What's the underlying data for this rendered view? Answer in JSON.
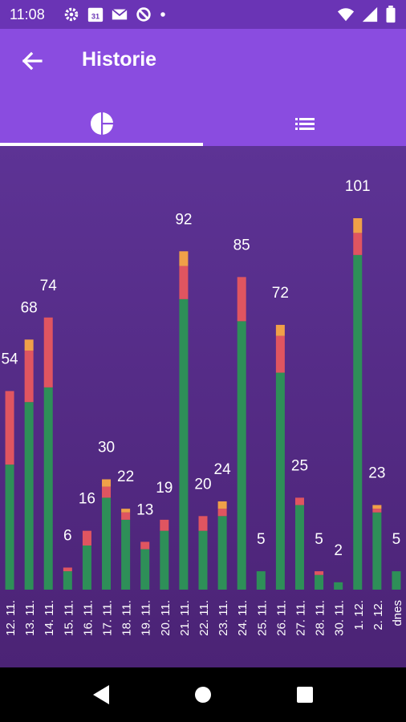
{
  "status_bar": {
    "time": "11:08",
    "calendar_day": "31",
    "icons_left": [
      "gear-icon",
      "calendar-icon",
      "gmail-icon",
      "sync-icon",
      "dot-icon"
    ],
    "icons_right": [
      "wifi-icon",
      "signal-icon",
      "battery-icon"
    ]
  },
  "app_bar": {
    "title": "Historie",
    "back_icon": "arrow-back-icon"
  },
  "tabs": [
    {
      "icon": "pie-chart-icon",
      "selected": true
    },
    {
      "icon": "list-icon",
      "selected": false
    }
  ],
  "colors": {
    "status_bar": "#6a34b5",
    "app_bar": "#8a4ce0",
    "background_top": "#5d3395",
    "background_bottom": "#4b2375",
    "green": "#2e8f58",
    "red": "#e05560",
    "orange": "#f0a048"
  },
  "chart_data": {
    "type": "bar",
    "stacked": true,
    "categories": [
      "12. 11.",
      "13. 11.",
      "14. 11.",
      "15. 11.",
      "16. 11.",
      "17. 11.",
      "18. 11.",
      "19. 11.",
      "20. 11.",
      "21. 11.",
      "22. 11.",
      "23. 11.",
      "24. 11.",
      "25. 11.",
      "26. 11.",
      "27. 11.",
      "28. 11.",
      "30. 11.",
      "1. 12.",
      "2. 12.",
      "dnes"
    ],
    "totals": [
      54,
      68,
      74,
      6,
      16,
      30,
      22,
      13,
      19,
      92,
      20,
      24,
      85,
      5,
      72,
      25,
      5,
      2,
      101,
      23,
      5
    ],
    "series": [
      {
        "color": "#2e8f58",
        "values": [
          34,
          51,
          55,
          5,
          12,
          25,
          19,
          11,
          16,
          79,
          16,
          20,
          73,
          5,
          59,
          23,
          4,
          2,
          91,
          21,
          5
        ]
      },
      {
        "color": "#e05560",
        "values": [
          20,
          14,
          19,
          1,
          4,
          3,
          2,
          2,
          3,
          9,
          4,
          2,
          12,
          0,
          10,
          2,
          1,
          0,
          6,
          1,
          0
        ]
      },
      {
        "color": "#f0a048",
        "values": [
          0,
          3,
          0,
          0,
          0,
          2,
          1,
          0,
          0,
          4,
          0,
          2,
          0,
          0,
          3,
          0,
          0,
          0,
          4,
          1,
          0
        ]
      }
    ],
    "ylim": [
      0,
      101
    ],
    "grid": false,
    "legend": "none"
  }
}
